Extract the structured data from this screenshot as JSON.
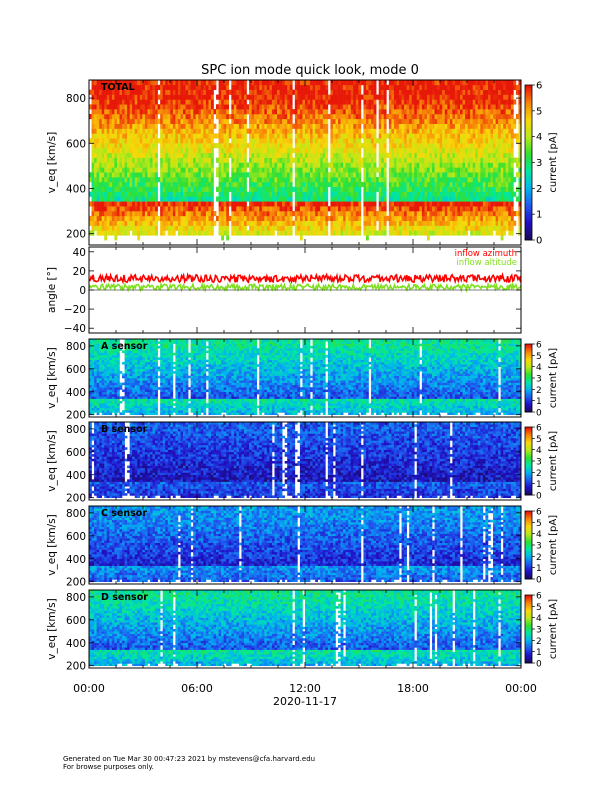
{
  "title": "SPC ion mode quick look, mode 0",
  "xaxis": {
    "ticks": [
      "00:00",
      "06:00",
      "12:00",
      "18:00",
      "00:00"
    ],
    "tick_hours": [
      0,
      6,
      12,
      18,
      24
    ],
    "minor_step_hours": 1.5,
    "date_label": "2020-11-17"
  },
  "colorbar": {
    "label": "current [pA]",
    "range": [
      0,
      6
    ],
    "ticks": [
      "0",
      "1",
      "2",
      "3",
      "4",
      "5",
      "6"
    ],
    "colors": [
      "#1a0a5c",
      "#2010c8",
      "#1e5cf0",
      "#00b4f0",
      "#00e8a0",
      "#30e030",
      "#b8e818",
      "#f8d808",
      "#f88808",
      "#e81808"
    ]
  },
  "footer": {
    "line1": "Generated on Tue Mar 30 00:47:23 2021 by mstevens@cfa.harvard.edu",
    "line2": "For browse purposes only."
  },
  "chart_data": [
    {
      "type": "heatmap",
      "panel": "TOTAL",
      "label": "TOTAL",
      "ylabel": "v_eq [km/s]",
      "ylim": [
        150,
        880
      ],
      "yticks": [
        "200",
        "400",
        "600",
        "800"
      ],
      "ytick_values": [
        200,
        400,
        600,
        800
      ],
      "xlim_hours": [
        0,
        24
      ],
      "core_speed_kms": 340,
      "min_speed_kms": 180,
      "intensity_scale": 1.0
    },
    {
      "type": "line",
      "panel": "angle",
      "ylabel": "angle [°]",
      "ylim": [
        -45,
        45
      ],
      "yticks": [
        "40",
        "20",
        "0",
        "−20",
        "−40"
      ],
      "ytick_values": [
        40,
        20,
        0,
        -20,
        -40
      ],
      "xlim_hours": [
        0,
        24
      ],
      "series": [
        {
          "name": "inflow azimuth",
          "color": "#ff0000",
          "mean_deg": 12,
          "spread_deg": 4
        },
        {
          "name": "inflow altitude",
          "color": "#80e020",
          "mean_deg": 3,
          "spread_deg": 3
        }
      ]
    },
    {
      "type": "heatmap",
      "panel": "A",
      "label": "A sensor",
      "ylabel": "v_eq [km/s]",
      "ylim": [
        180,
        860
      ],
      "yticks": [
        "200",
        "400",
        "600",
        "800"
      ],
      "ytick_values": [
        200,
        400,
        600,
        800
      ],
      "xlim_hours": [
        0,
        24
      ],
      "core_speed_kms": 340,
      "min_speed_kms": 190,
      "intensity_scale": 0.45
    },
    {
      "type": "heatmap",
      "panel": "B",
      "label": "B sensor",
      "ylabel": "v_eq [km/s]",
      "ylim": [
        180,
        860
      ],
      "yticks": [
        "200",
        "400",
        "600",
        "800"
      ],
      "ytick_values": [
        200,
        400,
        600,
        800
      ],
      "xlim_hours": [
        0,
        24
      ],
      "core_speed_kms": 340,
      "min_speed_kms": 190,
      "intensity_scale": 0.22
    },
    {
      "type": "heatmap",
      "panel": "C",
      "label": "C sensor",
      "ylabel": "v_eq [km/s]",
      "ylim": [
        180,
        860
      ],
      "yticks": [
        "200",
        "400",
        "600",
        "800"
      ],
      "ytick_values": [
        200,
        400,
        600,
        800
      ],
      "xlim_hours": [
        0,
        24
      ],
      "core_speed_kms": 340,
      "min_speed_kms": 190,
      "intensity_scale": 0.3
    },
    {
      "type": "heatmap",
      "panel": "D",
      "label": "D sensor",
      "ylabel": "v_eq [km/s]",
      "ylim": [
        180,
        860
      ],
      "yticks": [
        "200",
        "400",
        "600",
        "800"
      ],
      "ytick_values": [
        200,
        400,
        600,
        800
      ],
      "xlim_hours": [
        0,
        24
      ],
      "core_speed_kms": 340,
      "min_speed_kms": 190,
      "intensity_scale": 0.45
    }
  ]
}
